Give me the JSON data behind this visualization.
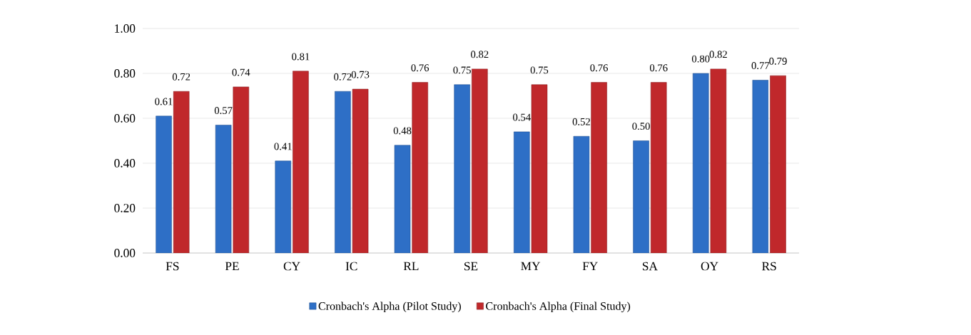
{
  "chart_data": {
    "type": "bar",
    "categories": [
      "FS",
      "PE",
      "CY",
      "IC",
      "RL",
      "SE",
      "MY",
      "FY",
      "SA",
      "OY",
      "RS"
    ],
    "series": [
      {
        "name": "Cronbach's Alpha (Pilot Study)",
        "color": "#2e6fc6",
        "values": [
          0.61,
          0.57,
          0.41,
          0.72,
          0.48,
          0.75,
          0.54,
          0.52,
          0.5,
          0.8,
          0.77
        ],
        "value_labels": [
          "0.61",
          "0.57",
          "0.41",
          "0.72",
          "0.48",
          "0.75",
          "0.54",
          "0.52",
          "0.50",
          "0.80",
          "0.77"
        ]
      },
      {
        "name": "Cronbach's Alpha (Final Study)",
        "color": "#c0282b",
        "values": [
          0.72,
          0.74,
          0.81,
          0.73,
          0.76,
          0.82,
          0.75,
          0.76,
          0.76,
          0.82,
          0.79
        ],
        "value_labels": [
          "0.72",
          "0.74",
          "0.81",
          "0.73",
          "0.76",
          "0.82",
          "0.75",
          "0.76",
          "0.76",
          "0.82",
          "0.79"
        ]
      }
    ],
    "ylim": [
      0,
      1
    ],
    "yticks": [
      {
        "value": 0,
        "label": "0.00"
      },
      {
        "value": 0.2,
        "label": "0.20"
      },
      {
        "value": 0.4,
        "label": "0.40"
      },
      {
        "value": 0.6,
        "label": "0.60"
      },
      {
        "value": 0.8,
        "label": "0.80"
      },
      {
        "value": 1,
        "label": "1.00"
      }
    ],
    "grid": "y",
    "legend": "bottom"
  }
}
